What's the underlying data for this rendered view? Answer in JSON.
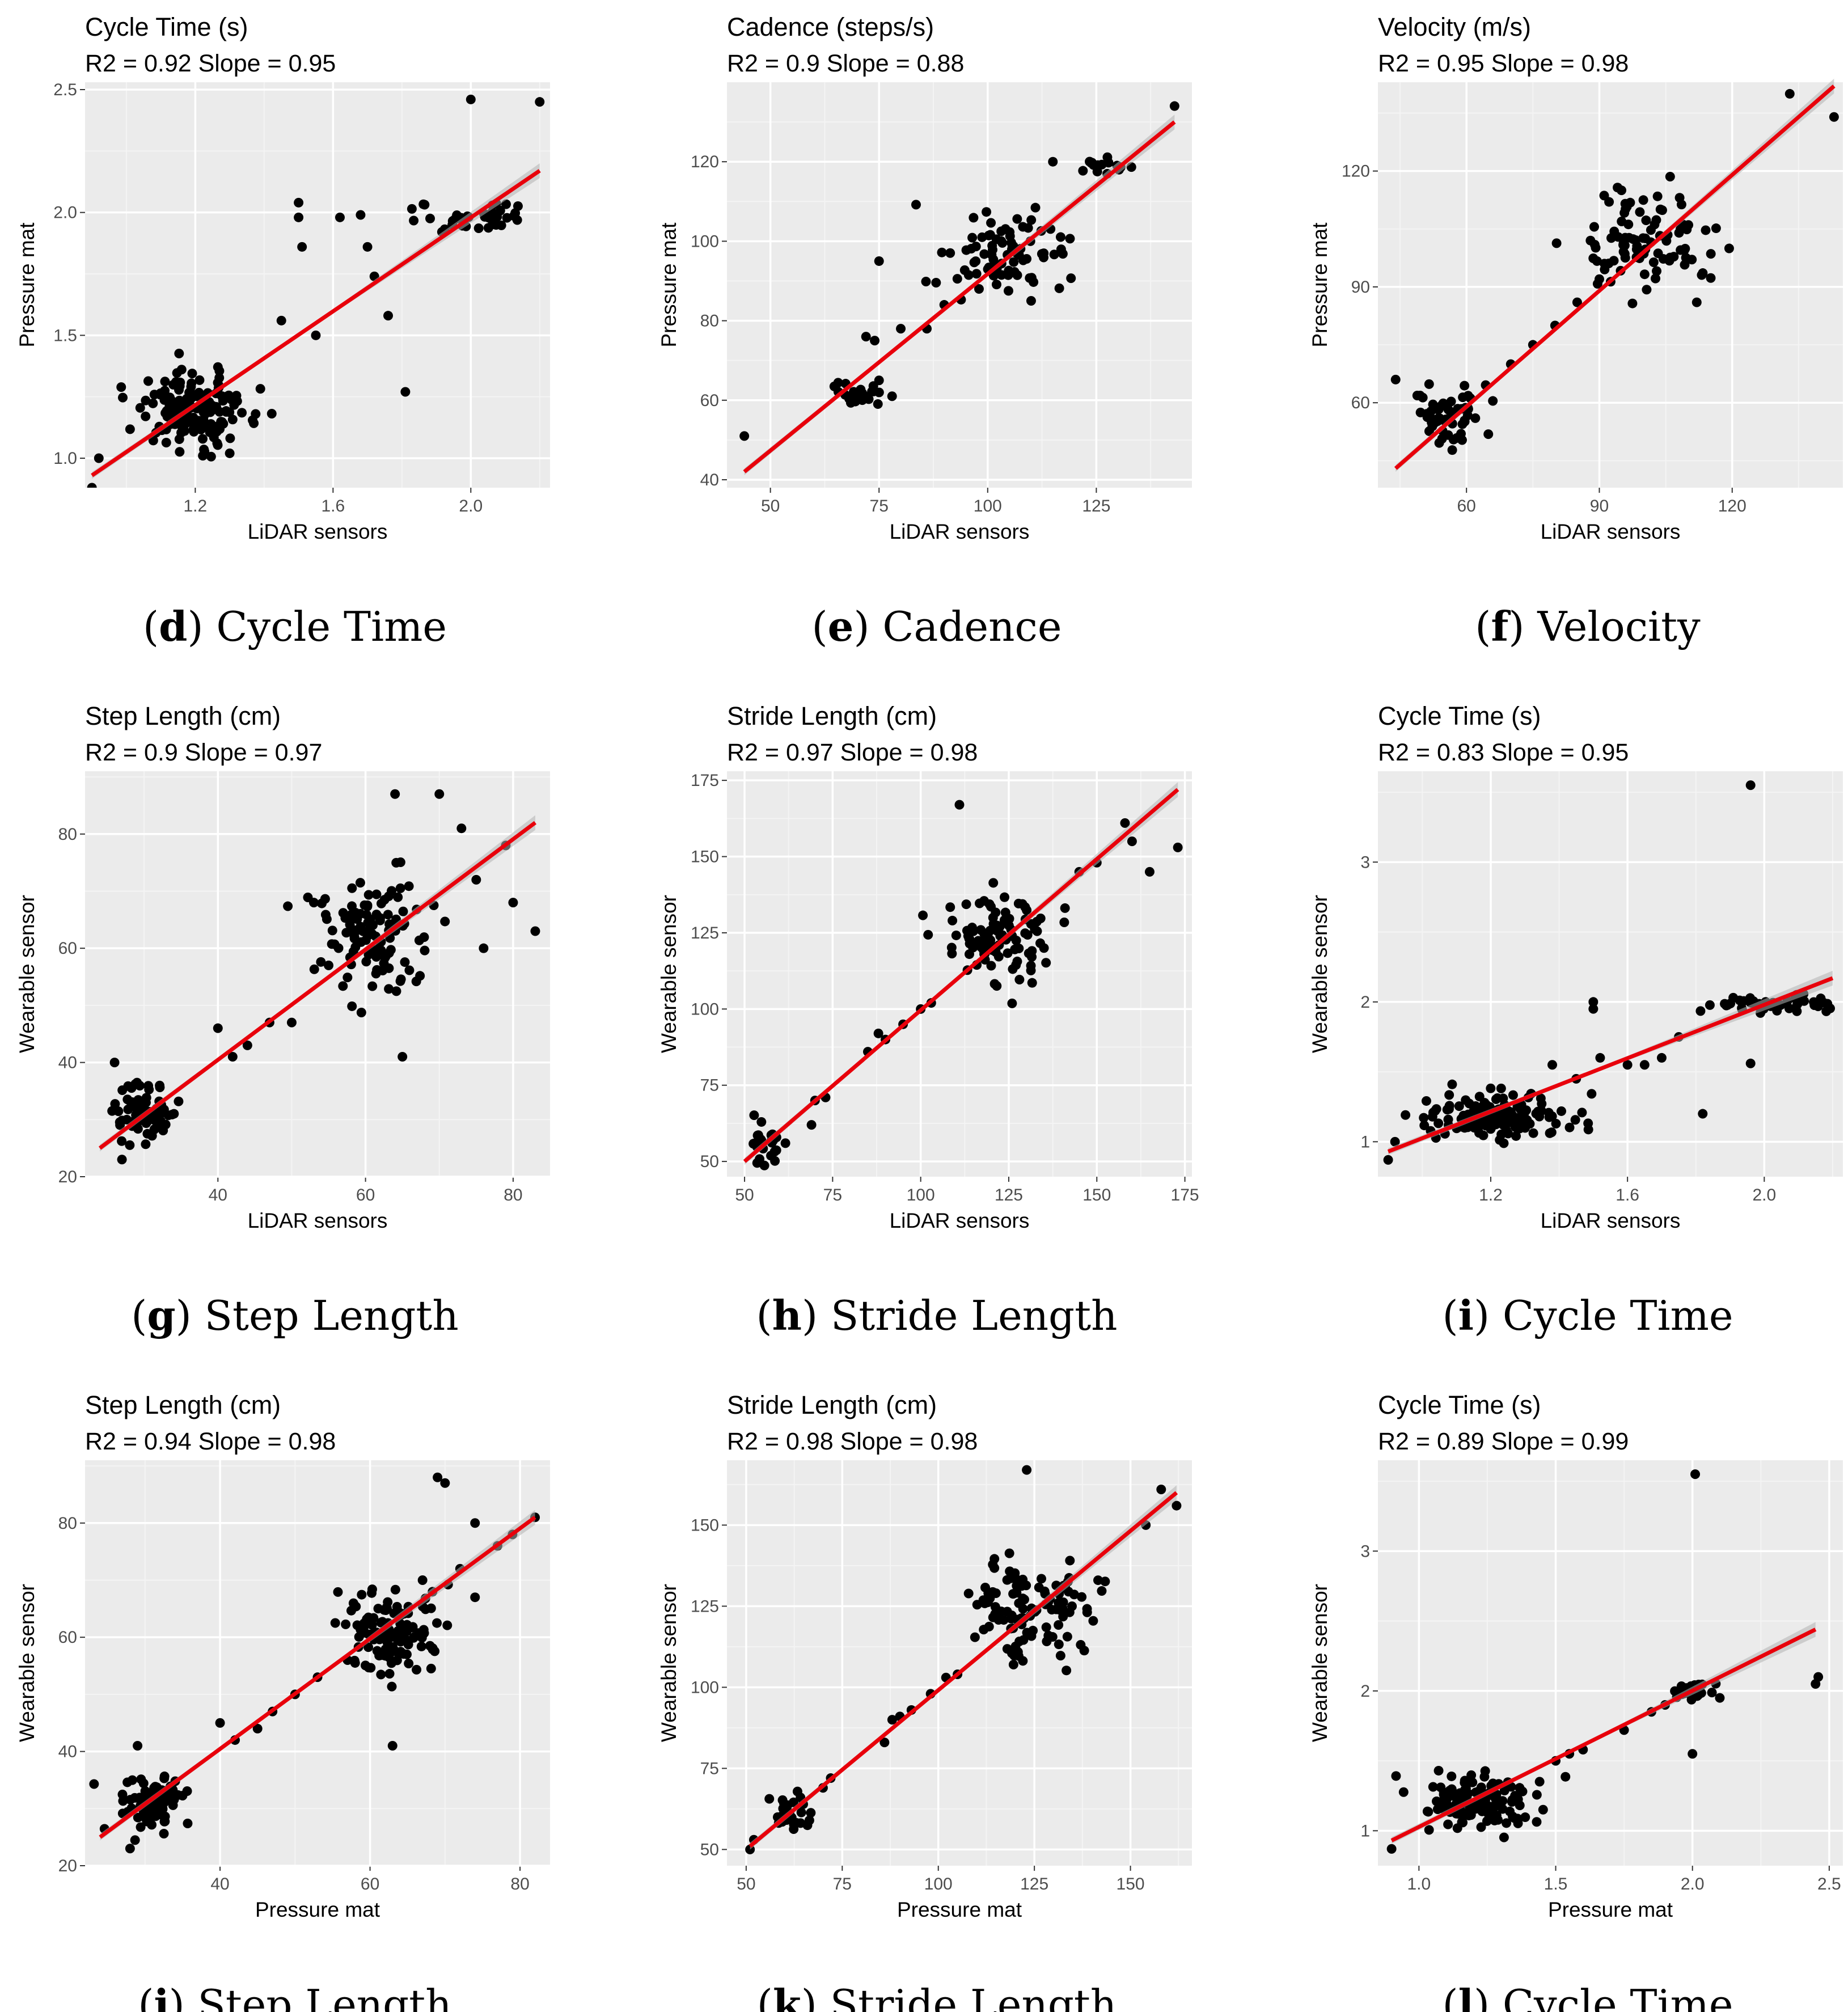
{
  "colors": {
    "panel_bg": "#ebebeb",
    "grid_major": "#ffffff",
    "grid_minor": "#f4f4f4",
    "point": "#000000",
    "fit_line": "#e8000b",
    "band": "#b3b3b3",
    "tick_text": "#4d4d4d"
  },
  "chart_data": [
    {
      "type": "scatter",
      "id": "d",
      "caption_letter": "d",
      "caption_text": "Cycle Time",
      "title": "Cycle Time (s)",
      "stats": "R2 =  0.92  Slope = 0.95",
      "xlabel": "LiDAR sensors",
      "ylabel": "Pressure mat",
      "xlim": [
        0.88,
        2.23
      ],
      "ylim": [
        0.88,
        2.53
      ],
      "xticks": [
        1.2,
        1.6,
        2.0
      ],
      "yticks": [
        1.0,
        1.5,
        2.0,
        2.5
      ],
      "tick_decimals": 1,
      "fit": {
        "x": [
          0.9,
          2.2
        ],
        "y": [
          0.93,
          2.17
        ]
      },
      "clusters": [
        {
          "cx": 1.2,
          "cy": 1.2,
          "sx": 0.085,
          "sy": 0.075,
          "n": 160
        },
        {
          "cx": 2.02,
          "cy": 1.98,
          "sx": 0.08,
          "sy": 0.035,
          "n": 40
        }
      ],
      "extra_points": [
        [
          0.9,
          0.88
        ],
        [
          0.92,
          1.0
        ],
        [
          1.5,
          2.04
        ],
        [
          1.5,
          1.98
        ],
        [
          1.51,
          1.86
        ],
        [
          1.62,
          1.98
        ],
        [
          1.68,
          1.99
        ],
        [
          1.7,
          1.86
        ],
        [
          1.72,
          1.74
        ],
        [
          1.76,
          1.58
        ],
        [
          1.81,
          1.27
        ],
        [
          2.0,
          2.46
        ],
        [
          2.2,
          2.45
        ],
        [
          1.3,
          1.02
        ],
        [
          1.55,
          1.5
        ],
        [
          1.45,
          1.56
        ]
      ]
    },
    {
      "type": "scatter",
      "id": "e",
      "caption_letter": "e",
      "caption_text": "Cadence",
      "title": "Cadence (steps/s)",
      "stats": "R2 =  0.9  Slope = 0.88",
      "xlabel": "LiDAR sensors",
      "ylabel": "Pressure mat",
      "xlim": [
        40,
        147
      ],
      "ylim": [
        38,
        140
      ],
      "xticks": [
        50,
        75,
        100,
        125
      ],
      "yticks": [
        40,
        60,
        80,
        100,
        120
      ],
      "tick_decimals": 0,
      "fit": {
        "x": [
          44,
          143
        ],
        "y": [
          42,
          130
        ]
      },
      "clusters": [
        {
          "cx": 70,
          "cy": 61,
          "sx": 3.5,
          "sy": 1.5,
          "n": 25
        },
        {
          "cx": 103,
          "cy": 96,
          "sx": 7,
          "sy": 5,
          "n": 80
        },
        {
          "cx": 127,
          "cy": 119,
          "sx": 2.5,
          "sy": 1.5,
          "n": 15
        }
      ],
      "extra_points": [
        [
          44,
          51
        ],
        [
          143,
          134
        ],
        [
          75,
          95
        ],
        [
          72,
          76
        ],
        [
          74,
          75
        ],
        [
          75,
          65
        ],
        [
          78,
          61
        ],
        [
          80,
          78
        ],
        [
          86,
          78
        ],
        [
          90,
          84
        ],
        [
          110,
          85
        ],
        [
          115,
          120
        ],
        [
          98,
          88
        ]
      ]
    },
    {
      "type": "scatter",
      "id": "f",
      "caption_letter": "f",
      "caption_text": "Velocity",
      "title": "Velocity (m/s)",
      "stats": "R2 =  0.95  Slope = 0.98",
      "xlabel": "LiDAR sensors",
      "ylabel": "Pressure mat",
      "xlim": [
        40,
        145
      ],
      "ylim": [
        38,
        143
      ],
      "xticks": [
        60,
        90,
        120
      ],
      "yticks": [
        60,
        90,
        120
      ],
      "tick_decimals": 0,
      "fit": {
        "x": [
          44,
          143
        ],
        "y": [
          43,
          142
        ]
      },
      "clusters": [
        {
          "cx": 56,
          "cy": 57,
          "sx": 4,
          "sy": 4,
          "n": 55
        },
        {
          "cx": 100,
          "cy": 101,
          "sx": 8,
          "sy": 7,
          "n": 90
        }
      ],
      "extra_points": [
        [
          44,
          66
        ],
        [
          143,
          134
        ],
        [
          133,
          140
        ],
        [
          112,
          86
        ],
        [
          62,
          56
        ],
        [
          70,
          70
        ],
        [
          75,
          75
        ],
        [
          80,
          80
        ],
        [
          85,
          86
        ],
        [
          90,
          92
        ],
        [
          108,
          104
        ],
        [
          95,
          115
        ],
        [
          88,
          102
        ]
      ]
    },
    {
      "type": "scatter",
      "id": "g",
      "caption_letter": "g",
      "caption_text": "Step Length",
      "title": "Step Length (cm)",
      "stats": "R2 =  0.9  Slope = 0.97",
      "xlabel": "LiDAR sensors",
      "ylabel": "Wearable sensor",
      "xlim": [
        22,
        85
      ],
      "ylim": [
        20,
        91
      ],
      "xticks": [
        40,
        60,
        80
      ],
      "yticks": [
        20,
        40,
        60,
        80
      ],
      "tick_decimals": 0,
      "fit": {
        "x": [
          24,
          83
        ],
        "y": [
          25,
          82
        ]
      },
      "clusters": [
        {
          "cx": 30,
          "cy": 31,
          "sx": 2.2,
          "sy": 2.5,
          "n": 75
        },
        {
          "cx": 61,
          "cy": 63,
          "sx": 4,
          "sy": 5,
          "n": 110
        }
      ],
      "extra_points": [
        [
          64,
          87
        ],
        [
          70,
          87
        ],
        [
          73,
          81
        ],
        [
          76,
          60
        ],
        [
          79,
          78
        ],
        [
          80,
          68
        ],
        [
          83,
          63
        ],
        [
          65,
          41
        ],
        [
          26,
          40
        ],
        [
          40,
          46
        ],
        [
          42,
          41
        ],
        [
          44,
          43
        ],
        [
          47,
          47
        ],
        [
          50,
          47
        ],
        [
          53,
          68
        ],
        [
          55,
          57
        ],
        [
          75,
          72
        ],
        [
          27,
          23
        ]
      ]
    },
    {
      "type": "scatter",
      "id": "h",
      "caption_letter": "h",
      "caption_text": "Stride Length",
      "title": "Stride Length (cm)",
      "stats": "R2 =  0.97  Slope = 0.98",
      "xlabel": "LiDAR sensors",
      "ylabel": "Wearable sensor",
      "xlim": [
        45,
        177
      ],
      "ylim": [
        45,
        178
      ],
      "xticks": [
        50,
        75,
        100,
        125,
        150,
        175
      ],
      "yticks": [
        50,
        75,
        100,
        125,
        150,
        175
      ],
      "tick_decimals": 0,
      "fit": {
        "x": [
          50,
          173
        ],
        "y": [
          50,
          172
        ]
      },
      "clusters": [
        {
          "cx": 57,
          "cy": 56,
          "sx": 3,
          "sy": 3,
          "n": 25
        },
        {
          "cx": 122,
          "cy": 122,
          "sx": 8,
          "sy": 7,
          "n": 100
        }
      ],
      "extra_points": [
        [
          111,
          167
        ],
        [
          173,
          153
        ],
        [
          160,
          155
        ],
        [
          158,
          161
        ],
        [
          165,
          145
        ],
        [
          135,
          120
        ],
        [
          109,
          129
        ],
        [
          85,
          86
        ],
        [
          88,
          92
        ],
        [
          90,
          90
        ],
        [
          95,
          95
        ],
        [
          100,
          100
        ],
        [
          103,
          102
        ],
        [
          69,
          62
        ],
        [
          70,
          70
        ],
        [
          73,
          71
        ],
        [
          150,
          148
        ],
        [
          145,
          145
        ]
      ]
    },
    {
      "type": "scatter",
      "id": "i",
      "caption_letter": "i",
      "caption_text": "Cycle Time",
      "title": "Cycle Time (s)",
      "stats": "R2 =  0.83  Slope = 0.95",
      "xlabel": "LiDAR sensors",
      "ylabel": "Wearable sensor",
      "xlim": [
        0.87,
        2.23
      ],
      "ylim": [
        0.75,
        3.65
      ],
      "xticks": [
        1.2,
        1.6,
        2.0
      ],
      "yticks": [
        1,
        2,
        3
      ],
      "tick_decimals": 1,
      "ytick_decimals": 0,
      "fit": {
        "x": [
          0.9,
          2.2
        ],
        "y": [
          0.93,
          2.17
        ]
      },
      "clusters": [
        {
          "cx": 1.2,
          "cy": 1.18,
          "sx": 0.1,
          "sy": 0.08,
          "n": 150
        },
        {
          "cx": 2.03,
          "cy": 1.99,
          "sx": 0.08,
          "sy": 0.03,
          "n": 45
        }
      ],
      "extra_points": [
        [
          1.96,
          3.55
        ],
        [
          0.9,
          0.87
        ],
        [
          0.92,
          1.0
        ],
        [
          1.5,
          2.0
        ],
        [
          1.5,
          1.95
        ],
        [
          1.52,
          1.6
        ],
        [
          1.6,
          1.55
        ],
        [
          1.65,
          1.55
        ],
        [
          1.7,
          1.6
        ],
        [
          1.75,
          1.75
        ],
        [
          1.82,
          1.2
        ],
        [
          1.96,
          1.56
        ],
        [
          1.38,
          1.55
        ],
        [
          1.45,
          1.45
        ]
      ]
    },
    {
      "type": "scatter",
      "id": "j",
      "caption_letter": "j",
      "caption_text": "Step Length",
      "title": "Step Length (cm)",
      "stats": "R2 =  0.94  Slope = 0.98",
      "xlabel": "Pressure mat",
      "ylabel": "Wearable sensor",
      "xlim": [
        22,
        84
      ],
      "ylim": [
        20,
        91
      ],
      "xticks": [
        40,
        60,
        80
      ],
      "yticks": [
        20,
        40,
        60,
        80
      ],
      "tick_decimals": 0,
      "fit": {
        "x": [
          24,
          82
        ],
        "y": [
          25,
          81
        ]
      },
      "clusters": [
        {
          "cx": 31,
          "cy": 31,
          "sx": 2.3,
          "sy": 2.5,
          "n": 80
        },
        {
          "cx": 62,
          "cy": 61,
          "sx": 3.5,
          "sy": 4,
          "n": 120
        }
      ],
      "extra_points": [
        [
          69,
          88
        ],
        [
          70,
          87
        ],
        [
          74,
          80
        ],
        [
          82,
          81
        ],
        [
          79,
          78
        ],
        [
          74,
          67
        ],
        [
          63,
          41
        ],
        [
          29,
          41
        ],
        [
          40,
          45
        ],
        [
          42,
          42
        ],
        [
          45,
          44
        ],
        [
          47,
          47
        ],
        [
          50,
          50
        ],
        [
          53,
          53
        ],
        [
          57,
          56
        ],
        [
          67,
          70
        ],
        [
          72,
          72
        ],
        [
          77,
          76
        ],
        [
          28,
          23
        ]
      ]
    },
    {
      "type": "scatter",
      "id": "k",
      "caption_letter": "k",
      "caption_text": "Stride Length",
      "title": "Stride Length (cm)",
      "stats": "R2 =  0.98  Slope = 0.98",
      "xlabel": "Pressure mat",
      "ylabel": "Wearable sensor",
      "xlim": [
        45,
        166
      ],
      "ylim": [
        45,
        170
      ],
      "xticks": [
        50,
        75,
        100,
        125,
        150
      ],
      "yticks": [
        50,
        75,
        100,
        125,
        150
      ],
      "tick_decimals": 0,
      "fit": {
        "x": [
          51,
          162
        ],
        "y": [
          51,
          160
        ]
      },
      "clusters": [
        {
          "cx": 61,
          "cy": 60,
          "sx": 3,
          "sy": 3,
          "n": 25
        },
        {
          "cx": 124,
          "cy": 124,
          "sx": 8,
          "sy": 7,
          "n": 110
        }
      ],
      "extra_points": [
        [
          123,
          167
        ],
        [
          162,
          156
        ],
        [
          158,
          161
        ],
        [
          154,
          150
        ],
        [
          113,
          129
        ],
        [
          115,
          129
        ],
        [
          86,
          83
        ],
        [
          88,
          90
        ],
        [
          90,
          91
        ],
        [
          93,
          93
        ],
        [
          98,
          98
        ],
        [
          102,
          103
        ],
        [
          105,
          104
        ],
        [
          70,
          69
        ],
        [
          72,
          72
        ],
        [
          51,
          50
        ],
        [
          52,
          53
        ]
      ]
    },
    {
      "type": "scatter",
      "id": "l",
      "caption_letter": "l",
      "caption_text": "Cycle Time",
      "title": "Cycle Time (s)",
      "stats": "R2 =  0.89  Slope = 0.99",
      "xlabel": "Pressure mat",
      "ylabel": "Wearable sensor",
      "xlim": [
        0.85,
        2.55
      ],
      "ylim": [
        0.75,
        3.65
      ],
      "xticks": [
        1.0,
        1.5,
        2.0,
        2.5
      ],
      "yticks": [
        1,
        2,
        3
      ],
      "tick_decimals": 1,
      "ytick_decimals": 0,
      "fit": {
        "x": [
          0.9,
          2.45
        ],
        "y": [
          0.93,
          2.44
        ]
      },
      "clusters": [
        {
          "cx": 1.22,
          "cy": 1.2,
          "sx": 0.11,
          "sy": 0.09,
          "n": 130
        },
        {
          "cx": 2.0,
          "cy": 1.99,
          "sx": 0.04,
          "sy": 0.03,
          "n": 25
        }
      ],
      "extra_points": [
        [
          2.01,
          3.55
        ],
        [
          2.45,
          2.05
        ],
        [
          2.46,
          2.1
        ],
        [
          0.9,
          0.87
        ],
        [
          2.0,
          1.55
        ],
        [
          1.75,
          1.72
        ],
        [
          1.85,
          1.85
        ],
        [
          1.9,
          1.9
        ],
        [
          1.55,
          1.55
        ],
        [
          1.6,
          1.58
        ],
        [
          1.5,
          1.5
        ],
        [
          2.1,
          1.95
        ]
      ]
    }
  ]
}
